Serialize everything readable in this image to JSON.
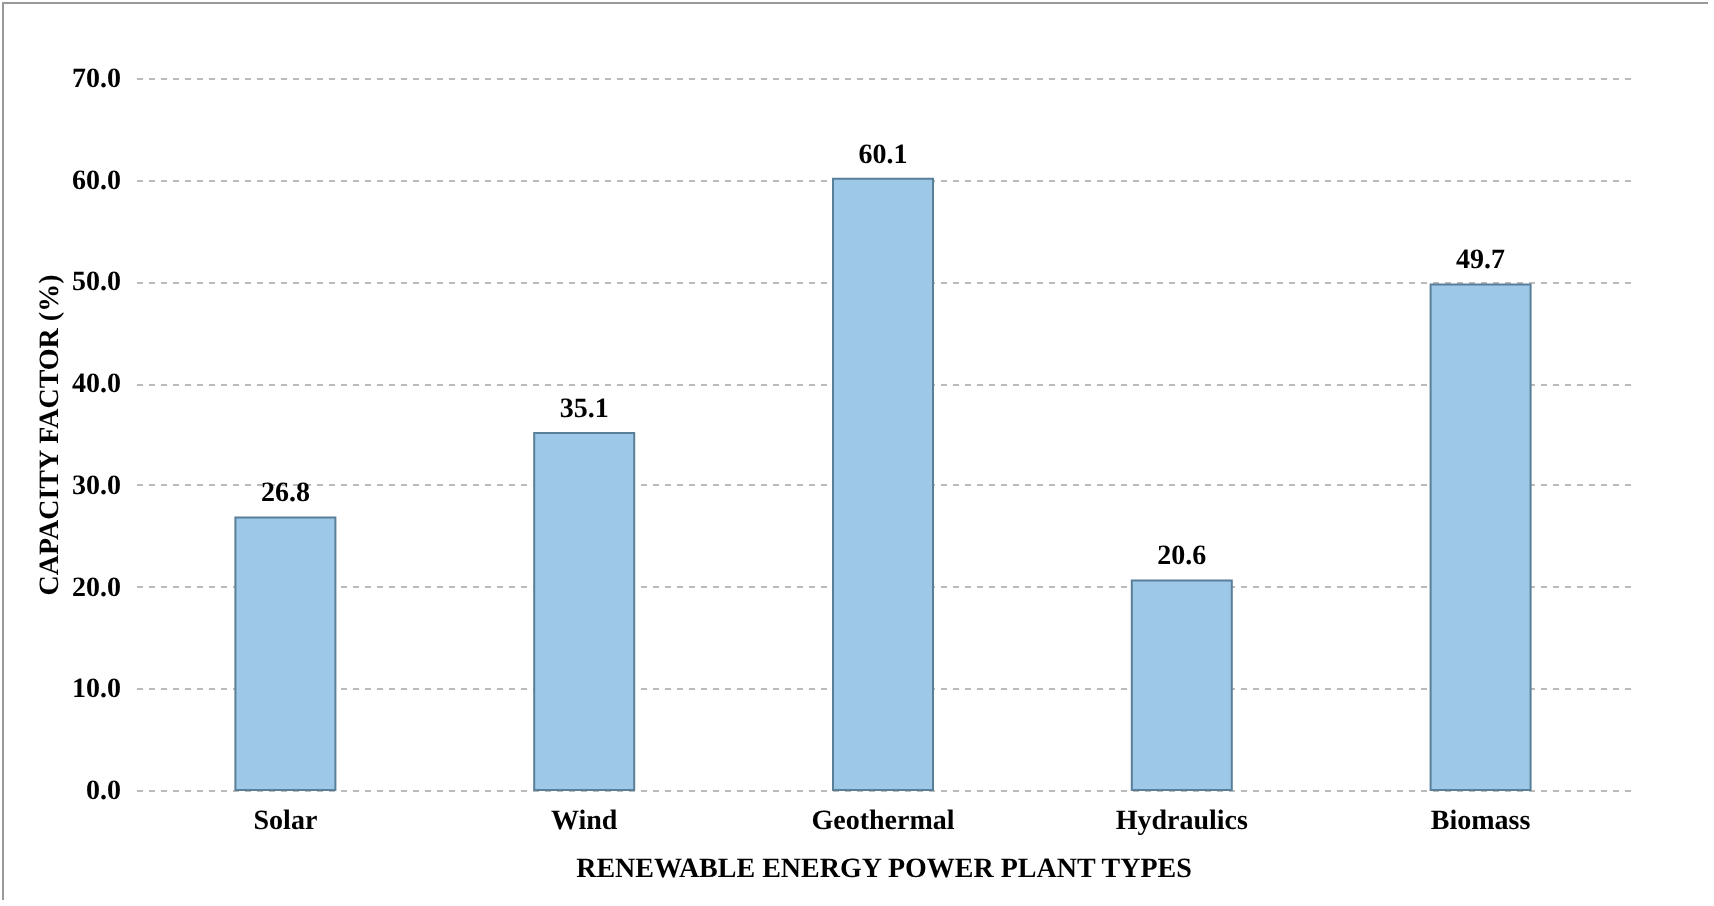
{
  "chart_data": {
    "type": "bar",
    "xlabel": "RENEWABLE  ENERGY  POWER  PLANT  TYPES",
    "ylabel": "CAPACITY  FACTOR  (%)",
    "categories": [
      "Solar",
      "Wind",
      "Geothermal",
      "Hydraulics",
      "Biomass"
    ],
    "values": [
      26.8,
      35.1,
      60.1,
      20.6,
      49.7
    ],
    "color": "#9dc8e8",
    "ylim": [
      0,
      70
    ],
    "yticks": [
      {
        "value": 0,
        "label": "0.0"
      },
      {
        "value": 10,
        "label": "10.0"
      },
      {
        "value": 20,
        "label": "20.0"
      },
      {
        "value": 30,
        "label": "30.0"
      },
      {
        "value": 40,
        "label": "40.0"
      },
      {
        "value": 50,
        "label": "50.0"
      },
      {
        "value": 60,
        "label": "60.0"
      },
      {
        "value": 70,
        "label": "70.0"
      }
    ],
    "grid": true,
    "data_labels": true
  }
}
